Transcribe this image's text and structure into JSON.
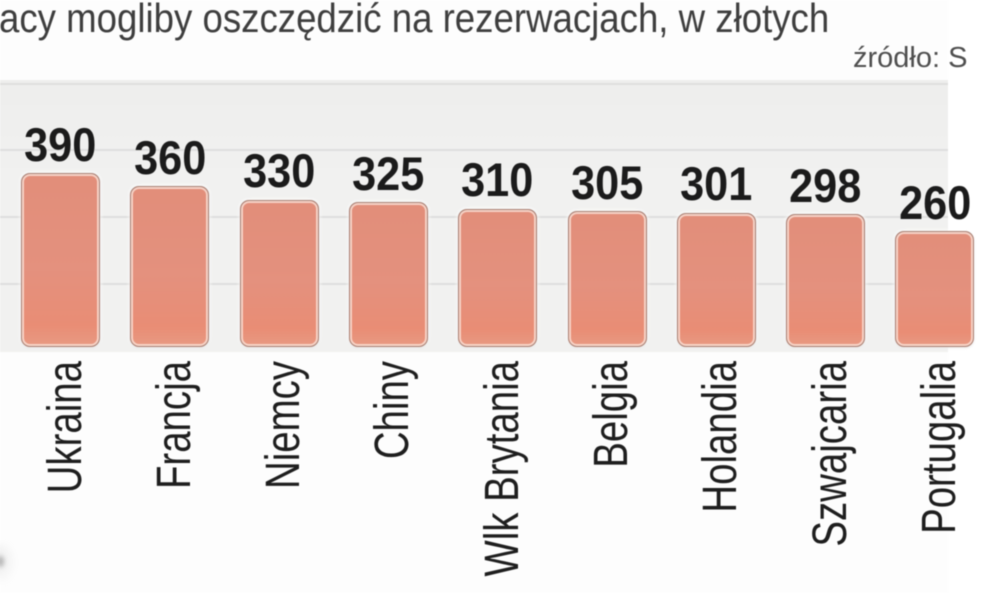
{
  "title": "acy mogliby oszczędzić na rezerwacjach, w złotych",
  "source_label": "źródło: S",
  "chart_data": {
    "type": "bar",
    "title": "acy mogliby oszczędzić na rezerwacjach, w złotych",
    "unit": "złote (PLN)",
    "categories": [
      "Ukraina",
      "Francja",
      "Niemcy",
      "Chiny",
      "Wlk Brytania",
      "Belgia",
      "Holandia",
      "Szwajcaria",
      "Portugalia"
    ],
    "values": [
      390,
      360,
      330,
      325,
      310,
      305,
      301,
      298,
      260
    ],
    "value_labels": [
      "390",
      "360",
      "330",
      "325",
      "310",
      "305",
      "301",
      "298",
      "260"
    ],
    "xlabel": "",
    "ylabel": "",
    "ylim": [
      0,
      470
    ],
    "grid": true,
    "legend": false,
    "orientation": "vertical",
    "category_label_rotation_deg": -90
  },
  "colors": {
    "bar_fill": "#e5917e",
    "bar_inner_stroke": "#fae1d7",
    "bar_outer_stroke": "#8c8078",
    "plot_background": "#f1f1f0",
    "gridline": "#dcdcdb",
    "value_text": "#1b1b1b",
    "category_text": "#1e1e1e",
    "title_text": "#3e3e3e",
    "source_text": "#4f4f4f",
    "page_background": "#fdfdfd"
  }
}
